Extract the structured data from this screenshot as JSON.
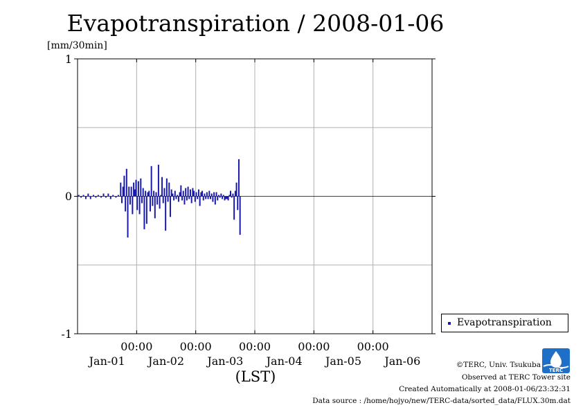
{
  "chart_data": {
    "type": "bar",
    "title": "Evapotranspiration / 2008-01-06",
    "ylabel": "[mm/30min]",
    "xlabel": "(LST)",
    "ylim": [
      -1,
      1
    ],
    "yticks": [
      "1",
      "0",
      "-1"
    ],
    "x_time_labels": [
      "00:00",
      "00:00",
      "00:00",
      "00:00",
      "00:00"
    ],
    "x_date_labels": [
      "Jan-01",
      "Jan-02",
      "Jan-03",
      "Jan-04",
      "Jan-05",
      "Jan-06"
    ],
    "x_range_days": [
      0,
      6
    ],
    "grid": true,
    "legend_position": "right",
    "series": [
      {
        "name": "Evapotranspiration",
        "color": "#1a1aaa",
        "points": [
          [
            0.02,
            0.01
          ],
          [
            0.06,
            -0.01
          ],
          [
            0.1,
            0.01
          ],
          [
            0.14,
            -0.02
          ],
          [
            0.18,
            0.02
          ],
          [
            0.22,
            -0.02
          ],
          [
            0.27,
            0.01
          ],
          [
            0.31,
            -0.01
          ],
          [
            0.35,
            0.01
          ],
          [
            0.4,
            -0.01
          ],
          [
            0.44,
            0.02
          ],
          [
            0.48,
            -0.01
          ],
          [
            0.52,
            0.02
          ],
          [
            0.56,
            -0.02
          ],
          [
            0.6,
            0.01
          ],
          [
            0.65,
            -0.01
          ],
          [
            0.69,
            0.01
          ],
          [
            0.73,
            0.1
          ],
          [
            0.75,
            -0.05
          ],
          [
            0.77,
            0.07
          ],
          [
            0.79,
            0.15
          ],
          [
            0.81,
            -0.11
          ],
          [
            0.83,
            0.2
          ],
          [
            0.85,
            -0.3
          ],
          [
            0.87,
            0.07
          ],
          [
            0.89,
            -0.06
          ],
          [
            0.91,
            0.07
          ],
          [
            0.93,
            -0.13
          ],
          [
            0.95,
            0.1
          ],
          [
            0.97,
            0.05
          ],
          [
            0.99,
            0.12
          ],
          [
            1.01,
            -0.1
          ],
          [
            1.03,
            0.11
          ],
          [
            1.05,
            -0.13
          ],
          [
            1.07,
            0.13
          ],
          [
            1.09,
            -0.05
          ],
          [
            1.11,
            0.06
          ],
          [
            1.13,
            -0.24
          ],
          [
            1.15,
            0.04
          ],
          [
            1.17,
            -0.2
          ],
          [
            1.19,
            0.03
          ],
          [
            1.21,
            0.04
          ],
          [
            1.23,
            -0.11
          ],
          [
            1.25,
            0.22
          ],
          [
            1.27,
            -0.07
          ],
          [
            1.29,
            0.04
          ],
          [
            1.31,
            -0.16
          ],
          [
            1.33,
            0.03
          ],
          [
            1.35,
            -0.06
          ],
          [
            1.37,
            0.23
          ],
          [
            1.39,
            -0.09
          ],
          [
            1.41,
            0.01
          ],
          [
            1.43,
            0.14
          ],
          [
            1.45,
            -0.05
          ],
          [
            1.47,
            0.06
          ],
          [
            1.49,
            -0.25
          ],
          [
            1.51,
            0.13
          ],
          [
            1.53,
            -0.04
          ],
          [
            1.55,
            0.1
          ],
          [
            1.57,
            -0.15
          ],
          [
            1.59,
            0.05
          ],
          [
            1.61,
            0.02
          ],
          [
            1.63,
            -0.03
          ],
          [
            1.65,
            0.04
          ],
          [
            1.67,
            -0.02
          ],
          [
            1.69,
            0.01
          ],
          [
            1.71,
            -0.04
          ],
          [
            1.73,
            0.03
          ],
          [
            1.75,
            0.08
          ],
          [
            1.77,
            -0.03
          ],
          [
            1.79,
            0.04
          ],
          [
            1.81,
            -0.06
          ],
          [
            1.83,
            0.06
          ],
          [
            1.85,
            -0.03
          ],
          [
            1.87,
            0.07
          ],
          [
            1.89,
            -0.02
          ],
          [
            1.91,
            0.05
          ],
          [
            1.93,
            -0.05
          ],
          [
            1.95,
            0.06
          ],
          [
            1.97,
            0.04
          ],
          [
            1.99,
            -0.04
          ],
          [
            2.01,
            0.03
          ],
          [
            2.03,
            -0.02
          ],
          [
            2.05,
            0.05
          ],
          [
            2.07,
            -0.07
          ],
          [
            2.09,
            0.03
          ],
          [
            2.11,
            0.04
          ],
          [
            2.13,
            -0.03
          ],
          [
            2.15,
            0.02
          ],
          [
            2.17,
            -0.02
          ],
          [
            2.19,
            0.03
          ],
          [
            2.21,
            -0.02
          ],
          [
            2.23,
            0.04
          ],
          [
            2.25,
            -0.02
          ],
          [
            2.27,
            0.02
          ],
          [
            2.29,
            -0.04
          ],
          [
            2.31,
            0.03
          ],
          [
            2.33,
            -0.06
          ],
          [
            2.35,
            0.03
          ],
          [
            2.37,
            -0.03
          ],
          [
            2.39,
            0.01
          ],
          [
            2.41,
            -0.01
          ],
          [
            2.43,
            0.02
          ],
          [
            2.45,
            -0.02
          ],
          [
            2.47,
            0.01
          ],
          [
            2.49,
            -0.03
          ],
          [
            2.51,
            -0.02
          ],
          [
            2.53,
            -0.02
          ],
          [
            2.55,
            -0.03
          ],
          [
            2.57,
            0.01
          ],
          [
            2.59,
            0.04
          ],
          [
            2.61,
            -0.01
          ],
          [
            2.63,
            0.02
          ],
          [
            2.65,
            -0.17
          ],
          [
            2.67,
            0.04
          ],
          [
            2.69,
            0.1
          ],
          [
            2.71,
            -0.1
          ],
          [
            2.73,
            0.27
          ],
          [
            2.75,
            -0.28
          ]
        ]
      }
    ]
  },
  "legend": {
    "label": "Evapotranspiration",
    "color": "#1a1aaa"
  },
  "footer": {
    "copyright": "©TERC, Univ. Tsukuba",
    "observed": "Observed at TERC Tower site",
    "created": "Created Automatically at 2008-01-06/23:32:31",
    "source": "Data source : /home/hojyo/new/TERC-data/sorted_data/FLUX.30m.dat"
  },
  "logo": {
    "text": "TERC",
    "color": "#1e6fc8"
  }
}
